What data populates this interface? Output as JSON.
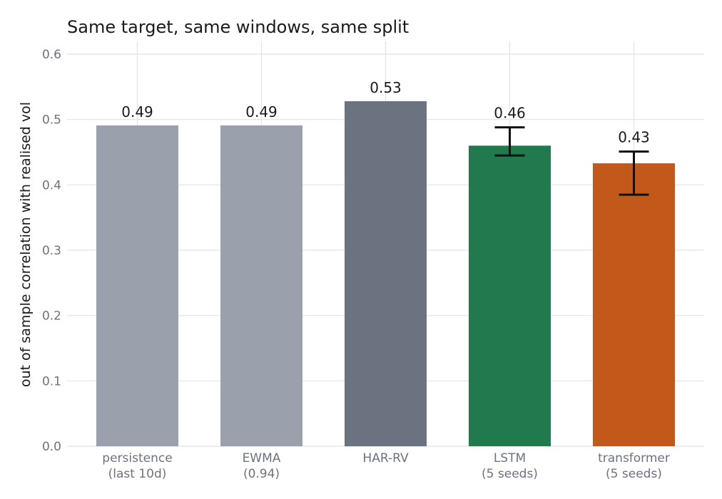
{
  "chart_data": {
    "type": "bar",
    "title": "Same target, same windows, same split",
    "ylabel": "out of sample correlation with realised vol",
    "xlabel": "",
    "ylim": [
      0,
      0.62
    ],
    "yticks": [
      0.0,
      0.1,
      0.2,
      0.3,
      0.4,
      0.5,
      0.6
    ],
    "ytick_labels": [
      "0.0",
      "0.1",
      "0.2",
      "0.3",
      "0.4",
      "0.5",
      "0.6"
    ],
    "grid": true,
    "categories": [
      [
        "persistence",
        "(last 10d)"
      ],
      [
        "EWMA",
        "(0.94)"
      ],
      [
        "HAR-RV"
      ],
      [
        "LSTM",
        "(5 seeds)"
      ],
      [
        "transformer",
        "(5 seeds)"
      ]
    ],
    "values": [
      0.491,
      0.491,
      0.528,
      0.46,
      0.433
    ],
    "value_labels": [
      "0.49",
      "0.49",
      "0.53",
      "0.46",
      "0.43"
    ],
    "error_low": [
      null,
      null,
      null,
      0.445,
      0.385
    ],
    "error_high": [
      null,
      null,
      null,
      0.488,
      0.451
    ],
    "colors": [
      "#9aa0ac",
      "#9aa0ac",
      "#6b7280",
      "#217a4e",
      "#c3581b"
    ]
  }
}
